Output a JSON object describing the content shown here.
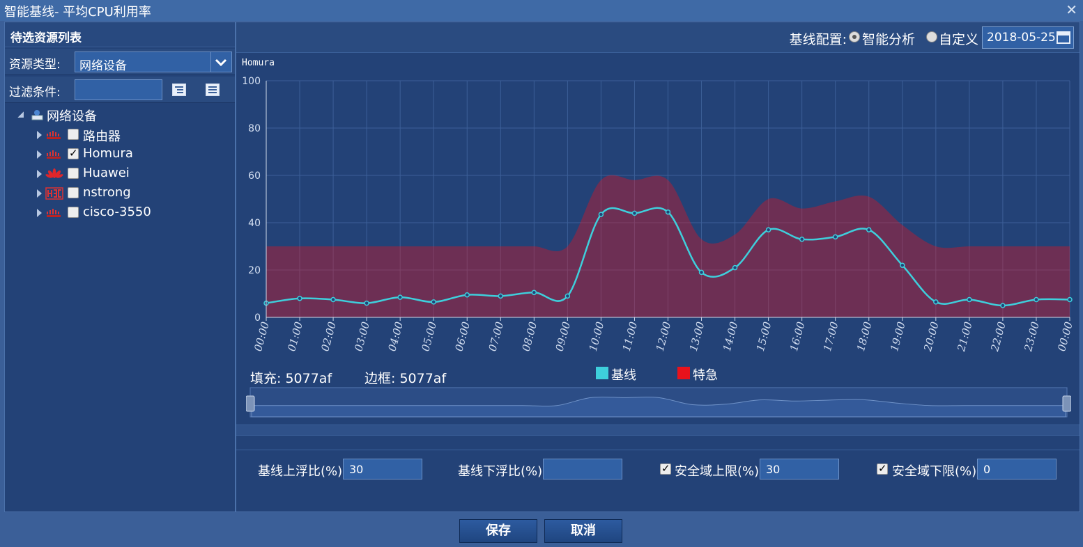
{
  "window": {
    "title": "智能基线- 平均CPU利用率"
  },
  "left_panel": {
    "header": "待选资源列表",
    "resource_type_label": "资源类型:",
    "resource_type_value": "网络设备",
    "filter_label": "过滤条件:",
    "filter_value": "",
    "tree": {
      "root": "网络设备",
      "children": [
        {
          "label": "路由器",
          "vendor": "cisco-icon",
          "checked": false
        },
        {
          "label": "Homura",
          "vendor": "cisco-icon",
          "checked": true
        },
        {
          "label": "Huawei",
          "vendor": "huawei-icon",
          "checked": false
        },
        {
          "label": "nstrong",
          "vendor": "h3c-icon",
          "checked": false
        },
        {
          "label": "cisco-3550",
          "vendor": "cisco-icon",
          "checked": false
        }
      ]
    }
  },
  "right_panel": {
    "baseline_config_label": "基线配置:",
    "option_smart": "智能分析",
    "option_custom": "自定义",
    "selected_option": "智能分析",
    "date": "2018-05-25",
    "fill_info": "填充: 5077af",
    "border_info": "边框: 5077af"
  },
  "chart_data": {
    "type": "line",
    "title": "Homura",
    "x": [
      "00:00",
      "01:00",
      "02:00",
      "03:00",
      "04:00",
      "05:00",
      "06:00",
      "07:00",
      "08:00",
      "09:00",
      "10:00",
      "11:00",
      "12:00",
      "13:00",
      "14:00",
      "15:00",
      "16:00",
      "17:00",
      "18:00",
      "19:00",
      "20:00",
      "21:00",
      "22:00",
      "23:00",
      "00:00"
    ],
    "ylim": [
      0,
      100
    ],
    "yticks": [
      0,
      20,
      40,
      60,
      80,
      100
    ],
    "grid": true,
    "series": [
      {
        "name": "基线",
        "color": "#3ecfdc",
        "values": [
          6,
          8,
          7.5,
          6,
          8.5,
          6.5,
          9.5,
          9,
          10.5,
          9,
          43.5,
          44,
          44.5,
          19,
          21,
          37,
          33,
          34,
          37,
          22,
          6.5,
          7.5,
          5,
          7.5,
          7.5
        ]
      },
      {
        "name": "特急",
        "color": "#e8121c",
        "values": [
          30,
          30,
          30,
          30,
          30,
          30,
          30,
          30,
          30,
          30,
          58,
          58,
          58,
          33,
          35,
          50,
          46,
          49,
          51,
          39,
          30,
          30,
          30,
          30,
          30
        ]
      }
    ],
    "legend_position": "bottom-center",
    "navigator": true
  },
  "form": {
    "upper_float_label": "基线上浮比(%)",
    "upper_float_value": "30",
    "lower_float_label": "基线下浮比(%)",
    "lower_float_value": "",
    "safe_upper_label": "安全域上限(%)",
    "safe_upper_value": "30",
    "safe_upper_checked": true,
    "safe_lower_label": "安全域下限(%)",
    "safe_lower_value": "0",
    "safe_lower_checked": true
  },
  "buttons": {
    "save": "保存",
    "cancel": "取消"
  }
}
